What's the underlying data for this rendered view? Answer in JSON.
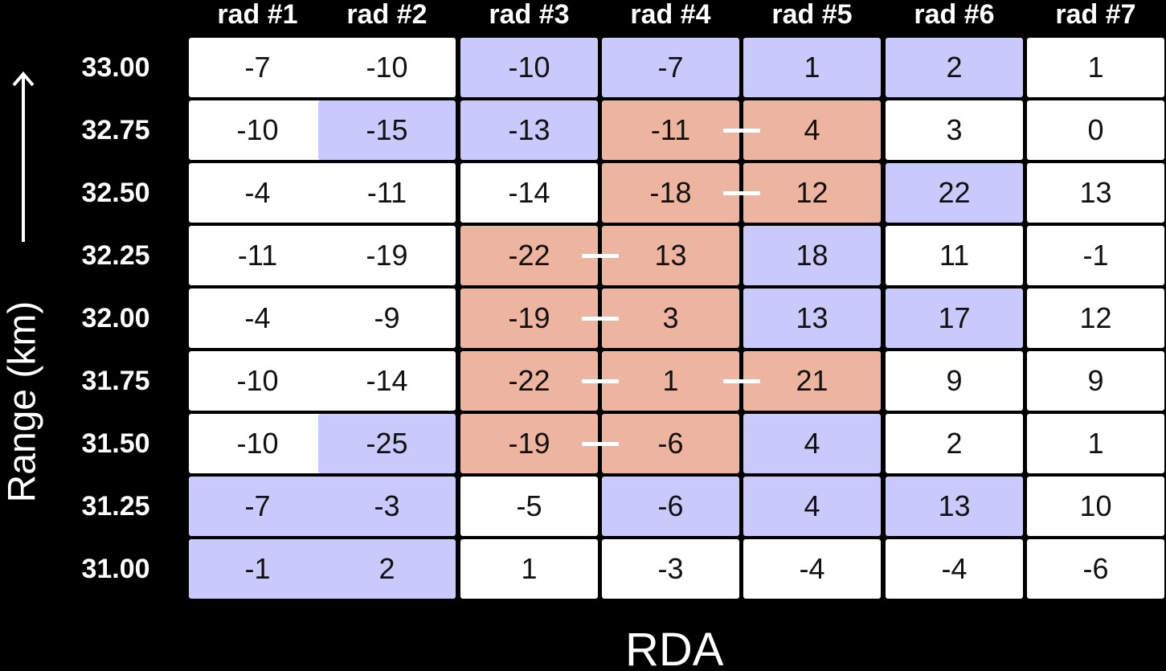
{
  "columns": [
    "rad #1",
    "rad #2",
    "rad #3",
    "rad #4",
    "rad #5",
    "rad #6",
    "rad #7"
  ],
  "rows": [
    "33.00",
    "32.75",
    "32.50",
    "32.25",
    "32.00",
    "31.75",
    "31.50",
    "31.25",
    "31.00"
  ],
  "y_axis_title": "Range (km)",
  "x_axis_title": "RDA",
  "colors": {
    "background": "#000000",
    "white": "#ffffff",
    "blue": "#c9c9fb",
    "salmon": "#edb5a0"
  },
  "cells": [
    [
      {
        "v": "-7",
        "c": "white"
      },
      {
        "v": "-10",
        "c": "white"
      },
      {
        "v": "-10",
        "c": "blue"
      },
      {
        "v": "-7",
        "c": "blue"
      },
      {
        "v": "1",
        "c": "blue"
      },
      {
        "v": "2",
        "c": "blue"
      },
      {
        "v": "1",
        "c": "white"
      }
    ],
    [
      {
        "v": "-10",
        "c": "white"
      },
      {
        "v": "-15",
        "c": "blue"
      },
      {
        "v": "-13",
        "c": "blue"
      },
      {
        "v": "-11",
        "c": "salmon"
      },
      {
        "v": "4",
        "c": "salmon"
      },
      {
        "v": "3",
        "c": "white"
      },
      {
        "v": "0",
        "c": "white"
      }
    ],
    [
      {
        "v": "-4",
        "c": "white"
      },
      {
        "v": "-11",
        "c": "white"
      },
      {
        "v": "-14",
        "c": "white"
      },
      {
        "v": "-18",
        "c": "salmon"
      },
      {
        "v": "12",
        "c": "salmon"
      },
      {
        "v": "22",
        "c": "blue"
      },
      {
        "v": "13",
        "c": "white"
      }
    ],
    [
      {
        "v": "-11",
        "c": "white"
      },
      {
        "v": "-19",
        "c": "white"
      },
      {
        "v": "-22",
        "c": "salmon"
      },
      {
        "v": "13",
        "c": "salmon"
      },
      {
        "v": "18",
        "c": "blue"
      },
      {
        "v": "11",
        "c": "white"
      },
      {
        "v": "-1",
        "c": "white"
      }
    ],
    [
      {
        "v": "-4",
        "c": "white"
      },
      {
        "v": "-9",
        "c": "white"
      },
      {
        "v": "-19",
        "c": "salmon"
      },
      {
        "v": "3",
        "c": "salmon"
      },
      {
        "v": "13",
        "c": "blue"
      },
      {
        "v": "17",
        "c": "blue"
      },
      {
        "v": "12",
        "c": "white"
      }
    ],
    [
      {
        "v": "-10",
        "c": "white"
      },
      {
        "v": "-14",
        "c": "white"
      },
      {
        "v": "-22",
        "c": "salmon"
      },
      {
        "v": "1",
        "c": "salmon"
      },
      {
        "v": "21",
        "c": "salmon"
      },
      {
        "v": "9",
        "c": "white"
      },
      {
        "v": "9",
        "c": "white"
      }
    ],
    [
      {
        "v": "-10",
        "c": "white"
      },
      {
        "v": "-25",
        "c": "blue"
      },
      {
        "v": "-19",
        "c": "salmon"
      },
      {
        "v": "-6",
        "c": "salmon"
      },
      {
        "v": "4",
        "c": "blue"
      },
      {
        "v": "2",
        "c": "white"
      },
      {
        "v": "1",
        "c": "white"
      }
    ],
    [
      {
        "v": "-7",
        "c": "blue"
      },
      {
        "v": "-3",
        "c": "blue"
      },
      {
        "v": "-5",
        "c": "white"
      },
      {
        "v": "-6",
        "c": "blue"
      },
      {
        "v": "4",
        "c": "blue"
      },
      {
        "v": "13",
        "c": "blue"
      },
      {
        "v": "10",
        "c": "white"
      }
    ],
    [
      {
        "v": "-1",
        "c": "blue"
      },
      {
        "v": "2",
        "c": "blue"
      },
      {
        "v": "1",
        "c": "white"
      },
      {
        "v": "-3",
        "c": "white"
      },
      {
        "v": "-4",
        "c": "white"
      },
      {
        "v": "-4",
        "c": "white"
      },
      {
        "v": "-6",
        "c": "white"
      }
    ]
  ],
  "pairs": [
    {
      "row": 1,
      "left_col": 3
    },
    {
      "row": 2,
      "left_col": 3
    },
    {
      "row": 3,
      "left_col": 2
    },
    {
      "row": 4,
      "left_col": 2
    },
    {
      "row": 5,
      "left_col": 2
    },
    {
      "row": 5,
      "left_col": 3
    },
    {
      "row": 6,
      "left_col": 2
    }
  ]
}
